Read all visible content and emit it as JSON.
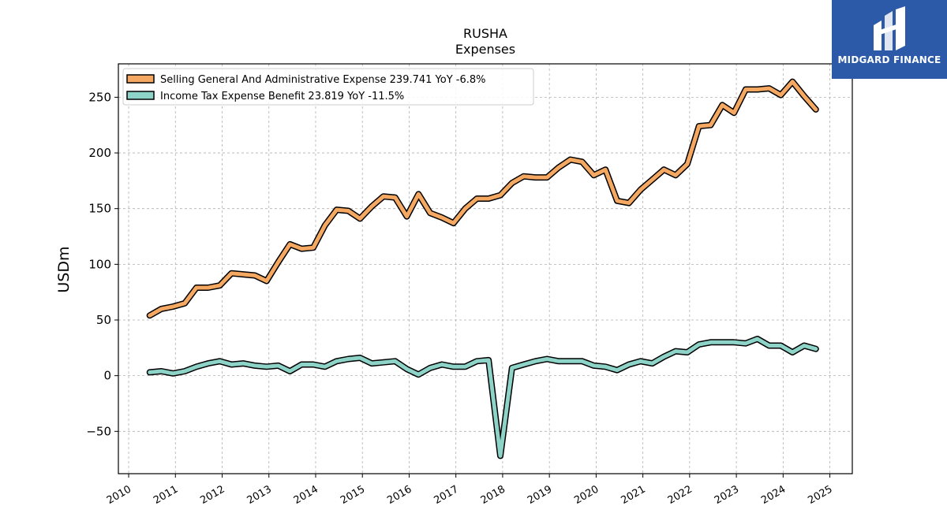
{
  "chart_data": {
    "type": "line",
    "title": "RUSHA",
    "subtitle": "Expenses",
    "ylabel": "USDm",
    "xlabel": "",
    "ylim": [
      -88,
      280
    ],
    "xlim": [
      2009.78,
      2025.48
    ],
    "yticks": [
      -50,
      0,
      50,
      100,
      150,
      200,
      250
    ],
    "yticklabels": [
      "−50",
      "0",
      "50",
      "100",
      "150",
      "200",
      "250"
    ],
    "xticks": [
      2010,
      2011,
      2012,
      2013,
      2014,
      2015,
      2016,
      2017,
      2018,
      2019,
      2020,
      2021,
      2022,
      2023,
      2024,
      2025
    ],
    "xticklabels": [
      "2010",
      "2011",
      "2012",
      "2013",
      "2014",
      "2015",
      "2016",
      "2017",
      "2018",
      "2019",
      "2020",
      "2021",
      "2022",
      "2023",
      "2024",
      "2025"
    ],
    "grid": true,
    "legend_position": "top-left",
    "x": [
      2010.45,
      2010.7,
      2010.95,
      2011.2,
      2011.45,
      2011.7,
      2011.95,
      2012.2,
      2012.45,
      2012.7,
      2012.95,
      2013.2,
      2013.45,
      2013.7,
      2013.95,
      2014.2,
      2014.45,
      2014.7,
      2014.95,
      2015.2,
      2015.45,
      2015.7,
      2015.95,
      2016.2,
      2016.45,
      2016.7,
      2016.95,
      2017.2,
      2017.45,
      2017.7,
      2017.95,
      2018.2,
      2018.45,
      2018.7,
      2018.95,
      2019.2,
      2019.45,
      2019.7,
      2019.95,
      2020.2,
      2020.45,
      2020.7,
      2020.95,
      2021.2,
      2021.45,
      2021.7,
      2021.95,
      2022.2,
      2022.45,
      2022.7,
      2022.95,
      2023.2,
      2023.45,
      2023.7,
      2023.95,
      2024.2,
      2024.45,
      2024.7
    ],
    "series": [
      {
        "name": "Selling General And Administrative Expense",
        "legend": "Selling General And Administrative Expense  239.741 YoY -6.8%",
        "color": "#f5a862",
        "values": [
          54,
          60,
          62,
          65,
          79,
          79,
          81,
          92,
          91,
          90,
          85,
          102,
          118,
          114,
          115,
          135,
          149,
          148,
          141,
          152,
          161,
          160,
          143,
          163,
          146,
          142,
          137,
          150,
          159,
          159,
          162,
          173,
          179,
          178,
          178,
          187,
          194,
          192,
          180,
          185,
          157,
          155,
          167,
          176,
          185,
          180,
          190,
          224,
          225,
          243,
          236,
          257,
          257,
          258,
          252,
          264,
          251,
          239
        ]
      },
      {
        "name": "Income Tax Expense Benefit",
        "legend": "Income Tax Expense Benefit  23.819 YoY -11.5%",
        "color": "#8dd3c7",
        "values": [
          3,
          4,
          2,
          4,
          8,
          11,
          13,
          10,
          11,
          9,
          8,
          9,
          4,
          10,
          10,
          8,
          13,
          15,
          16,
          11,
          12,
          13,
          6,
          1,
          7,
          10,
          8,
          8,
          13,
          14,
          -72,
          7,
          10,
          13,
          15,
          13,
          13,
          13,
          9,
          8,
          5,
          10,
          13,
          11,
          17,
          22,
          21,
          28,
          30,
          30,
          30,
          29,
          33,
          27,
          27,
          21,
          27,
          24
        ]
      }
    ]
  },
  "brand": {
    "name": "MIDGARD FINANCE",
    "logo_icon": "midgard-finance-logo-icon",
    "background_color": "#2d5aa8"
  }
}
